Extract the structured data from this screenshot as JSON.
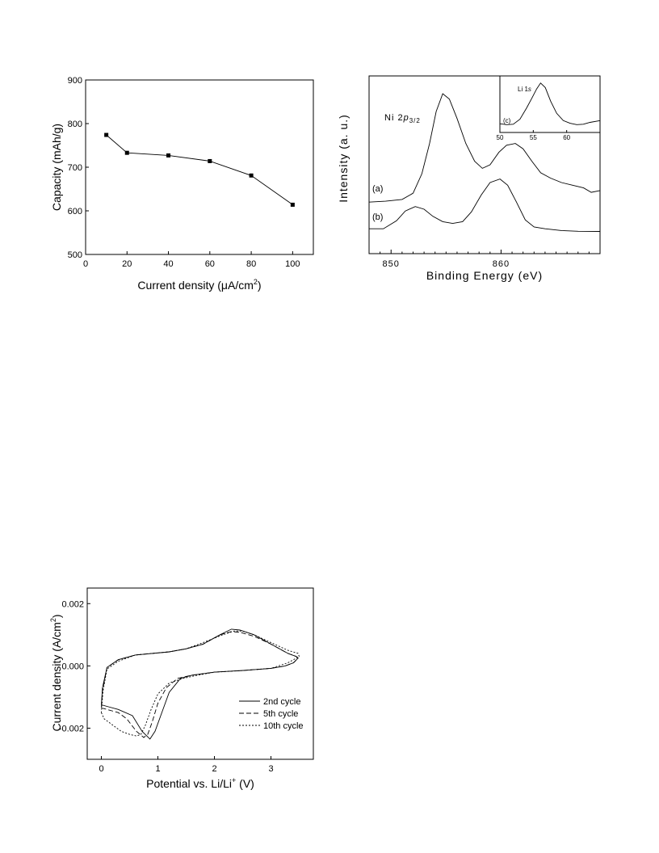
{
  "chart_data": [
    {
      "type": "line",
      "xlabel_main": "Current density (",
      "xlabel_mu": "μ",
      "xlabel_unit": "A/cm",
      "xlabel_sup": "2",
      "xlabel_close": ")",
      "ylabel": "Capacity (mAh/g)",
      "xlim": [
        0,
        110
      ],
      "ylim": [
        500,
        900
      ],
      "xticks": [
        0,
        20,
        40,
        60,
        80,
        100
      ],
      "yticks": [
        500,
        600,
        700,
        800,
        900
      ],
      "x": [
        10,
        20,
        40,
        60,
        80,
        100
      ],
      "y": [
        774,
        733,
        727,
        714,
        681,
        614
      ],
      "marker": "square"
    },
    {
      "type": "line",
      "xlabel": "Binding Energy (eV)",
      "ylabel": "Intensity (a. u.)",
      "xlim": [
        848,
        869
      ],
      "xticks": [
        850,
        860
      ],
      "peak_label_main": "Ni 2",
      "peak_label_p": "p",
      "peak_label_sub": "3/2",
      "series": [
        {
          "label": "(a)",
          "x": [
            848,
            849.5,
            851,
            852,
            852.8,
            853.5,
            854.1,
            854.7,
            855.3,
            856,
            856.8,
            857.6,
            858.3,
            859,
            859.8,
            860.5,
            861.3,
            862,
            862.8,
            863.6,
            864.5,
            865.5,
            866.5,
            867.5,
            868.2,
            869
          ],
          "y": [
            0.29,
            0.295,
            0.305,
            0.34,
            0.45,
            0.62,
            0.8,
            0.9,
            0.87,
            0.76,
            0.62,
            0.52,
            0.48,
            0.5,
            0.57,
            0.61,
            0.62,
            0.59,
            0.52,
            0.455,
            0.425,
            0.4,
            0.385,
            0.37,
            0.345,
            0.355
          ]
        },
        {
          "label": "(b)",
          "x": [
            848,
            849.3,
            850.5,
            851.3,
            852.2,
            853,
            853.8,
            854.7,
            855.6,
            856.5,
            857.3,
            858.2,
            859,
            859.9,
            860.6,
            861.4,
            862.2,
            863,
            864,
            865.5,
            867,
            869
          ],
          "y": [
            0.14,
            0.14,
            0.185,
            0.24,
            0.265,
            0.25,
            0.21,
            0.18,
            0.17,
            0.18,
            0.235,
            0.33,
            0.4,
            0.42,
            0.385,
            0.29,
            0.19,
            0.15,
            0.14,
            0.13,
            0.126,
            0.125
          ]
        }
      ],
      "inset": {
        "label": "(c)",
        "title_main": "Li 1",
        "title_s": "s",
        "xticks": [
          50,
          55,
          60
        ],
        "xlim": [
          50,
          65
        ],
        "x": [
          50,
          51,
          52,
          53,
          54,
          54.8,
          55.5,
          56.1,
          56.8,
          57.6,
          58.5,
          59.5,
          60.5,
          61.5,
          62.5,
          63.5,
          65
        ],
        "y": [
          0.05,
          0.03,
          0.04,
          0.15,
          0.4,
          0.62,
          0.82,
          0.95,
          0.85,
          0.55,
          0.28,
          0.12,
          0.06,
          0.03,
          0.04,
          0.08,
          0.12
        ]
      }
    },
    {
      "type": "line",
      "xlabel_main": "Potential vs. Li/Li",
      "xlabel_sup": "+",
      "xlabel_close": " (V)",
      "ylabel_main": "Current density (A/cm",
      "ylabel_sup": "2",
      "ylabel_close": ")",
      "xlim": [
        -0.25,
        3.75
      ],
      "ylim": [
        -0.003,
        0.0025
      ],
      "xticks": [
        "0",
        "1",
        "2",
        "3"
      ],
      "yticks": [
        "-0.002",
        "0.000",
        "0.002"
      ],
      "ytick_values": [
        -0.002,
        0,
        0.002
      ],
      "legend_position": "lower-right",
      "series": [
        {
          "name": "2nd cycle",
          "x": [
            0,
            0.1,
            0.3,
            0.55,
            0.72,
            0.86,
            0.95,
            1.05,
            1.2,
            1.4,
            1.6,
            2.0,
            2.5,
            3.0,
            3.25,
            3.4,
            3.48,
            3.45,
            3.3,
            3.0,
            2.7,
            2.45,
            2.3,
            2.1,
            1.8,
            1.5,
            1.2,
            0.9,
            0.6,
            0.3,
            0.1,
            0.02,
            0
          ],
          "y": [
            -0.00125,
            -0.0013,
            -0.0014,
            -0.0016,
            -0.0021,
            -0.00235,
            -0.0021,
            -0.0016,
            -0.00085,
            -0.0004,
            -0.0003,
            -0.0002,
            -0.00015,
            -8e-05,
            0.0,
            0.0001,
            0.00025,
            0.0003,
            0.0004,
            0.0007,
            0.001,
            0.00115,
            0.00118,
            0.001,
            0.0007,
            0.00055,
            0.00045,
            0.0004,
            0.00035,
            0.0002,
            -5e-05,
            -0.0007,
            -0.00125
          ]
        },
        {
          "name": "5th cycle",
          "x": [
            0,
            0.1,
            0.3,
            0.45,
            0.62,
            0.75,
            0.82,
            0.9,
            1.0,
            1.15,
            1.35,
            1.6,
            2.0,
            2.5,
            3.0,
            3.25,
            3.4,
            3.48,
            3.45,
            3.3,
            3.0,
            2.7,
            2.45,
            2.3,
            2.1,
            1.8,
            1.5,
            1.2,
            0.9,
            0.6,
            0.3,
            0.1,
            0.02,
            0
          ],
          "y": [
            -0.00135,
            -0.0014,
            -0.0015,
            -0.0017,
            -0.0021,
            -0.0023,
            -0.0022,
            -0.0018,
            -0.0012,
            -0.0007,
            -0.0004,
            -0.0003,
            -0.0002,
            -0.00015,
            -8e-05,
            0.0,
            0.0001,
            0.00025,
            0.0003,
            0.0004,
            0.0007,
            0.00095,
            0.00108,
            0.0011,
            0.001,
            0.0007,
            0.00055,
            0.00045,
            0.0004,
            0.00035,
            0.0002,
            -5e-05,
            -0.0008,
            -0.00135
          ]
        },
        {
          "name": "10th cycle",
          "x": [
            0,
            0.05,
            0.2,
            0.35,
            0.5,
            0.62,
            0.7,
            0.78,
            0.88,
            1.0,
            1.2,
            1.45,
            1.7,
            2.0,
            2.5,
            3.0,
            3.3,
            3.5,
            3.48,
            3.3,
            3.0,
            2.7,
            2.5,
            2.35,
            2.15,
            1.8,
            1.5,
            1.2,
            0.9,
            0.6,
            0.3,
            0.1,
            0.03,
            0
          ],
          "y": [
            -0.0015,
            -0.0017,
            -0.0019,
            -0.0021,
            -0.0022,
            -0.00225,
            -0.0022,
            -0.0019,
            -0.0014,
            -0.0009,
            -0.00055,
            -0.0004,
            -0.0003,
            -0.0002,
            -0.00015,
            -8e-05,
            0.0001,
            0.0003,
            0.0004,
            0.0005,
            0.00075,
            0.001,
            0.00112,
            0.00112,
            0.001,
            0.00075,
            0.00055,
            0.00045,
            0.0004,
            0.00035,
            0.00015,
            -0.0001,
            -0.0008,
            -0.0015
          ]
        }
      ]
    }
  ]
}
